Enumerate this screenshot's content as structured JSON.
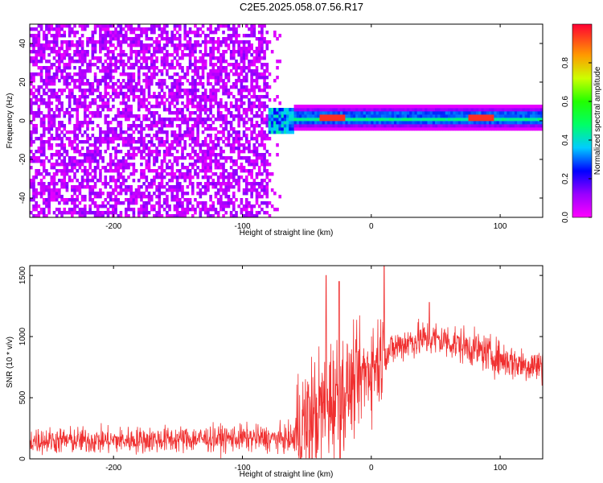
{
  "title": "C2E5.2025.058.07.56.R17",
  "chart_data": [
    {
      "type": "heatmap",
      "xlabel": "Height of straight line (km)",
      "ylabel": "Frequency (Hz)",
      "xlim": [
        -265,
        133
      ],
      "ylim": [
        -50,
        50
      ],
      "xticks": [
        -200,
        -100,
        0,
        100
      ],
      "yticks": [
        -40,
        -20,
        0,
        20,
        40
      ],
      "grid": false,
      "colorbar": {
        "label": "Normalized spectral amplitude",
        "range": [
          0,
          1
        ],
        "ticks": [
          0.0,
          0.2,
          0.4,
          0.6,
          0.8
        ],
        "tick_labels": [
          "0.0",
          "0.2",
          "0.4",
          "0.6",
          "0.8"
        ],
        "colormap": "hsv-rainbow (magenta-blue-cyan-green-yellow-red)"
      },
      "regions": [
        {
          "x_range": [
            -265,
            -80
          ],
          "f_range": [
            -50,
            50
          ],
          "amplitude": 0.08,
          "description": "broadband noise"
        },
        {
          "x_range": [
            -80,
            -60
          ],
          "f_range": [
            -6,
            6
          ],
          "amplitude": 0.4
        },
        {
          "x_range": [
            -60,
            133
          ],
          "f_center": 1.5,
          "f_halfwidth": 3,
          "amplitude": 0.45
        },
        {
          "x_range": [
            -40,
            -20
          ],
          "f_center": 2,
          "amplitude": 0.95
        },
        {
          "x_range": [
            75,
            95
          ],
          "f_center": 2,
          "amplitude": 0.95
        }
      ]
    },
    {
      "type": "line",
      "xlabel": "Height of straight line (km)",
      "ylabel": "SNR (10 * v/v)",
      "xlim": [
        -265,
        133
      ],
      "ylim": [
        0,
        1580
      ],
      "xticks": [
        -200,
        -100,
        0,
        100
      ],
      "yticks": [
        0,
        500,
        1000,
        1500
      ],
      "grid": false,
      "series": [
        {
          "color": "#f03030",
          "profile": {
            "x": [
              -265,
              -200,
              -150,
              -100,
              -60,
              -55,
              -40,
              -30,
              -20,
              -10,
              0,
              10,
              20,
              30,
              40,
              50,
              60,
              70,
              80,
              90,
              100,
              110,
              120,
              133
            ],
            "y": [
              150,
              150,
              160,
              170,
              160,
              240,
              380,
              500,
              560,
              640,
              760,
              850,
              920,
              960,
              980,
              980,
              960,
              930,
              900,
              860,
              820,
              790,
              770,
              760
            ]
          },
          "peaks": [
            [
              -35,
              1500
            ],
            [
              -25,
              1450
            ],
            [
              10,
              1580
            ],
            [
              45,
              1280
            ]
          ]
        }
      ]
    }
  ]
}
